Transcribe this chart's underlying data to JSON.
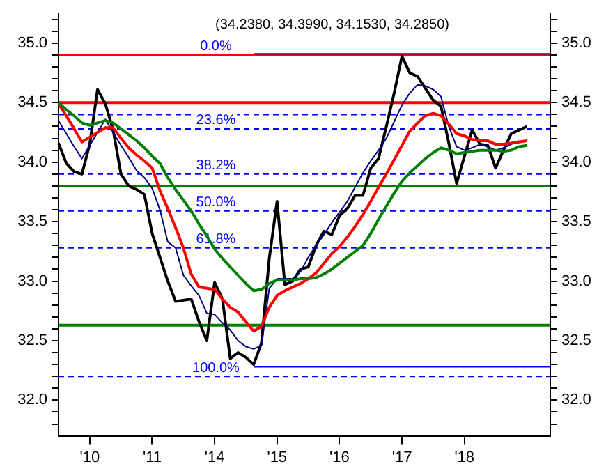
{
  "chart_data": {
    "type": "line",
    "title": "(34.2380, 34.3990, 34.1530, 34.2850)",
    "categories": [
      null,
      null,
      null,
      null,
      "'10",
      null,
      null,
      null,
      null,
      null,
      null,
      null,
      "'11",
      null,
      null,
      null,
      null,
      null,
      null,
      null,
      "'14",
      null,
      null,
      null,
      null,
      null,
      null,
      null,
      "'15",
      null,
      null,
      null,
      null,
      null,
      null,
      null,
      "'16",
      null,
      null,
      null,
      null,
      null,
      null,
      null,
      "'17",
      null,
      null,
      null,
      null,
      null,
      null,
      null,
      "'18",
      null,
      null,
      null,
      null,
      null,
      null,
      null,
      null,
      null,
      null,
      null
    ],
    "ylim": [
      31.7,
      35.25
    ],
    "yticks": [
      {
        "value": 31.8,
        "label": null
      },
      {
        "value": 31.9,
        "label": null
      },
      {
        "value": 32,
        "label": "32.0"
      },
      {
        "value": 32.1,
        "label": null
      },
      {
        "value": 32.2,
        "label": null
      },
      {
        "value": 32.3,
        "label": null
      },
      {
        "value": 32.4,
        "label": null
      },
      {
        "value": 32.5,
        "label": "32.5"
      },
      {
        "value": 32.6,
        "label": null
      },
      {
        "value": 32.7,
        "label": null
      },
      {
        "value": 32.8,
        "label": null
      },
      {
        "value": 32.9,
        "label": null
      },
      {
        "value": 33,
        "label": "33.0"
      },
      {
        "value": 33.1,
        "label": null
      },
      {
        "value": 33.2,
        "label": null
      },
      {
        "value": 33.3,
        "label": null
      },
      {
        "value": 33.4,
        "label": null
      },
      {
        "value": 33.5,
        "label": "33.5"
      },
      {
        "value": 33.6,
        "label": null
      },
      {
        "value": 33.7,
        "label": null
      },
      {
        "value": 33.8,
        "label": null
      },
      {
        "value": 33.9,
        "label": null
      },
      {
        "value": 34,
        "label": "34.0"
      },
      {
        "value": 34.1,
        "label": null
      },
      {
        "value": 34.2,
        "label": null
      },
      {
        "value": 34.3,
        "label": null
      },
      {
        "value": 34.4,
        "label": null
      },
      {
        "value": 34.5,
        "label": "34.5"
      },
      {
        "value": 34.6,
        "label": null
      },
      {
        "value": 34.7,
        "label": null
      },
      {
        "value": 34.8,
        "label": null
      },
      {
        "value": 34.9,
        "label": null
      },
      {
        "value": 35,
        "label": "35.0"
      },
      {
        "value": 35.1,
        "label": null
      },
      {
        "value": 35.2,
        "label": null
      }
    ],
    "y2lim": [
      31.7,
      35.25
    ],
    "y2ticks": [
      {
        "value": 31.8,
        "label": null
      },
      {
        "value": 31.9,
        "label": null
      },
      {
        "value": 32,
        "label": "32.0"
      },
      {
        "value": 32.1,
        "label": null
      },
      {
        "value": 32.2,
        "label": null
      },
      {
        "value": 32.3,
        "label": null
      },
      {
        "value": 32.4,
        "label": null
      },
      {
        "value": 32.5,
        "label": "32.5"
      },
      {
        "value": 32.6,
        "label": null
      },
      {
        "value": 32.7,
        "label": null
      },
      {
        "value": 32.8,
        "label": null
      },
      {
        "value": 32.9,
        "label": null
      },
      {
        "value": 33,
        "label": "33.0"
      },
      {
        "value": 33.1,
        "label": null
      },
      {
        "value": 33.2,
        "label": null
      },
      {
        "value": 33.3,
        "label": null
      },
      {
        "value": 33.4,
        "label": null
      },
      {
        "value": 33.5,
        "label": "33.5"
      },
      {
        "value": 33.6,
        "label": null
      },
      {
        "value": 33.7,
        "label": null
      },
      {
        "value": 33.8,
        "label": null
      },
      {
        "value": 33.9,
        "label": null
      },
      {
        "value": 34,
        "label": "34.0"
      },
      {
        "value": 34.1,
        "label": null
      },
      {
        "value": 34.2,
        "label": null
      },
      {
        "value": 34.3,
        "label": null
      },
      {
        "value": 34.4,
        "label": null
      },
      {
        "value": 34.5,
        "label": "34.5"
      },
      {
        "value": 34.6,
        "label": null
      },
      {
        "value": 34.7,
        "label": null
      },
      {
        "value": 34.8,
        "label": null
      },
      {
        "value": 34.9,
        "label": null
      },
      {
        "value": 35,
        "label": "35.0"
      },
      {
        "value": 35.1,
        "label": null
      },
      {
        "value": 35.2,
        "label": null
      }
    ],
    "grid": false,
    "legend": false,
    "series": [
      {
        "color": "#008000",
        "values": [
          34.5,
          34.44,
          34.39,
          34.33,
          34.31,
          34.33,
          34.35,
          34.33,
          34.28,
          34.23,
          34.18,
          34.12,
          34.05,
          33.99,
          33.87,
          33.77,
          33.68,
          33.59,
          33.48,
          33.38,
          33.27,
          33.19,
          33.12,
          33.05,
          32.98,
          32.92,
          32.93,
          32.98,
          33.01,
          33.01,
          33.01,
          33.02,
          33.02,
          33.03,
          33.06,
          33.1,
          33.15,
          33.2,
          33.25,
          33.3,
          33.4,
          33.52,
          33.63,
          33.74,
          33.84,
          33.91,
          33.97,
          34.03,
          34.08,
          34.12,
          34.1,
          34.07,
          34.08,
          34.09,
          34.1,
          34.1,
          34.1,
          34.09,
          34.1,
          34.13,
          34.14,
          null,
          null,
          null
        ]
      },
      {
        "color": "#ff0000",
        "values": [
          34.49,
          34.39,
          34.28,
          34.17,
          34.21,
          34.25,
          34.29,
          34.29,
          34.2,
          34.12,
          34.06,
          34.01,
          33.95,
          33.76,
          33.61,
          33.45,
          33.28,
          33.06,
          32.95,
          32.94,
          32.93,
          32.85,
          32.78,
          32.74,
          32.66,
          32.58,
          32.62,
          32.78,
          32.88,
          32.92,
          32.95,
          32.98,
          33.02,
          33.07,
          33.15,
          33.23,
          33.29,
          33.37,
          33.46,
          33.56,
          33.67,
          33.79,
          33.9,
          34.02,
          34.14,
          34.26,
          34.33,
          34.39,
          34.41,
          34.39,
          34.32,
          34.24,
          34.22,
          34.19,
          34.18,
          34.18,
          34.15,
          34.15,
          34.16,
          34.17,
          34.18,
          null,
          null,
          null
        ]
      },
      {
        "color": "#000080",
        "values": [
          34.35,
          34.24,
          34.13,
          34.03,
          34.14,
          34.25,
          34.36,
          34.25,
          34.14,
          34.04,
          33.93,
          33.87,
          33.78,
          33.6,
          33.33,
          33.28,
          33.05,
          32.96,
          32.88,
          32.73,
          32.72,
          32.65,
          32.59,
          32.5,
          32.45,
          32.43,
          32.46,
          32.94,
          33.02,
          33.02,
          33.02,
          33.08,
          33.2,
          33.3,
          33.39,
          33.49,
          33.58,
          33.67,
          33.79,
          33.91,
          34.01,
          34.1,
          34.2,
          34.34,
          34.48,
          34.58,
          34.65,
          34.64,
          34.61,
          34.55,
          34.3,
          34.13,
          34.1,
          34.12,
          34.15,
          34.13,
          34.1,
          34.12,
          34.15,
          34.18,
          null,
          null,
          null,
          null
        ]
      },
      {
        "color": "#000000",
        "values": [
          34.16,
          33.99,
          33.92,
          33.9,
          34.15,
          34.61,
          34.49,
          34.27,
          33.9,
          33.8,
          33.77,
          33.73,
          33.4,
          33.2,
          33.0,
          32.83,
          32.84,
          32.85,
          32.66,
          32.5,
          32.99,
          32.85,
          32.35,
          32.4,
          32.36,
          32.3,
          32.48,
          33.19,
          33.67,
          32.97,
          33.0,
          33.1,
          33.12,
          33.3,
          33.42,
          33.39,
          33.55,
          33.61,
          33.72,
          33.72,
          33.95,
          34.03,
          34.3,
          34.58,
          34.89,
          34.75,
          34.72,
          34.62,
          34.52,
          34.47,
          34.16,
          33.82,
          34.05,
          34.27,
          34.15,
          34.14,
          33.95,
          34.1,
          34.24,
          34.27,
          34.3,
          null,
          null,
          null
        ]
      },
      {
        "color": "#0000ff",
        "values": [
          null,
          null,
          null,
          null,
          null,
          null,
          null,
          null,
          null,
          null,
          null,
          null,
          null,
          null,
          null,
          null,
          null,
          null,
          null,
          null,
          null,
          null,
          null,
          null,
          null,
          34.91,
          34.91,
          34.91,
          34.91,
          34.91,
          34.91,
          34.91,
          34.91,
          34.91,
          34.91,
          34.91,
          34.91,
          34.91,
          34.91,
          34.91,
          34.91,
          34.91,
          34.91,
          34.91,
          34.91,
          34.91,
          34.91,
          34.91,
          34.91,
          34.91,
          34.91,
          34.91,
          34.91,
          34.91,
          34.91,
          34.91,
          34.91,
          34.91,
          34.91,
          34.91,
          34.91,
          34.91,
          34.91,
          34.91
        ]
      },
      {
        "color": "#0000ff",
        "values": [
          null,
          null,
          null,
          null,
          null,
          null,
          null,
          null,
          null,
          null,
          null,
          null,
          null,
          null,
          null,
          null,
          null,
          null,
          null,
          null,
          null,
          null,
          null,
          null,
          null,
          32.28,
          32.28,
          32.28,
          32.28,
          32.28,
          32.28,
          32.28,
          32.28,
          32.28,
          32.28,
          32.28,
          32.28,
          32.28,
          32.28,
          32.28,
          32.28,
          32.28,
          32.28,
          32.28,
          32.28,
          32.28,
          32.28,
          32.28,
          32.28,
          32.28,
          32.28,
          32.28,
          32.28,
          32.28,
          32.28,
          32.28,
          32.28,
          32.28,
          32.28,
          32.28,
          32.28,
          32.28,
          32.28,
          32.28
        ]
      }
    ],
    "ref_lines": [
      {
        "axis": "y",
        "value": 34.9,
        "color": "#ff0000"
      },
      {
        "axis": "y",
        "value": 34.5,
        "color": "#ff0000"
      },
      {
        "axis": "y",
        "value": 33.8,
        "color": "#008000"
      },
      {
        "axis": "y",
        "value": 32.63,
        "color": "#008000"
      },
      {
        "axis": "y",
        "value": 34.4,
        "color": "#0000ff",
        "line_style": "dashed"
      },
      {
        "axis": "y",
        "value": 34.28,
        "color": "#0000ff",
        "line_style": "dashed"
      },
      {
        "axis": "y",
        "value": 33.9,
        "color": "#0000ff",
        "line_style": "dashed"
      },
      {
        "axis": "y",
        "value": 33.59,
        "color": "#0000ff",
        "line_style": "dashed"
      },
      {
        "axis": "y",
        "value": 33.28,
        "color": "#0000ff",
        "line_style": "dashed"
      },
      {
        "axis": "y",
        "value": 32.2,
        "color": "#0000ff",
        "line_style": "dashed"
      }
    ],
    "annotations": [
      {
        "text": "0.0%",
        "y": 34.9
      },
      {
        "text": "23.6%",
        "y": 34.28
      },
      {
        "text": "38.2%",
        "y": 33.9
      },
      {
        "text": "50.0%",
        "y": 33.59
      },
      {
        "text": "61.8%",
        "y": 33.28
      },
      {
        "text": "100.0%",
        "y": 32.2
      }
    ]
  }
}
